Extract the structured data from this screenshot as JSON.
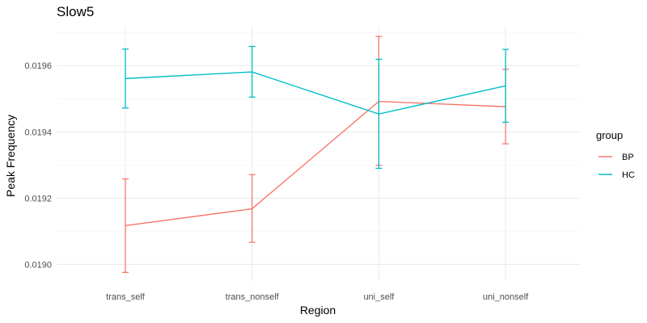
{
  "chart_data": {
    "type": "line",
    "title": "Slow5",
    "xlabel": "Region",
    "ylabel": "Peak Frequency",
    "categories": [
      "trans_self",
      "trans_nonself",
      "uni_self",
      "uni_nonself"
    ],
    "ylim": [
      0.01895,
      0.01972
    ],
    "yticks": [
      0.019,
      0.0192,
      0.0194,
      0.0196
    ],
    "ytick_labels": [
      "0.0190",
      "0.0192",
      "0.0194",
      "0.0196"
    ],
    "grid": true,
    "legend": {
      "title": "group",
      "position": "right"
    },
    "series": [
      {
        "name": "BP",
        "color": "#F8766D",
        "values": [
          0.019117,
          0.019168,
          0.019492,
          0.019476
        ],
        "lower": [
          0.018976,
          0.019067,
          0.019299,
          0.019364
        ],
        "upper": [
          0.019258,
          0.019271,
          0.019688,
          0.019589
        ]
      },
      {
        "name": "HC",
        "color": "#00BFC4",
        "values": [
          0.019561,
          0.019581,
          0.019454,
          0.019539
        ],
        "lower": [
          0.019472,
          0.019505,
          0.01929,
          0.019429
        ],
        "upper": [
          0.01965,
          0.019658,
          0.019619,
          0.019649
        ]
      }
    ]
  }
}
